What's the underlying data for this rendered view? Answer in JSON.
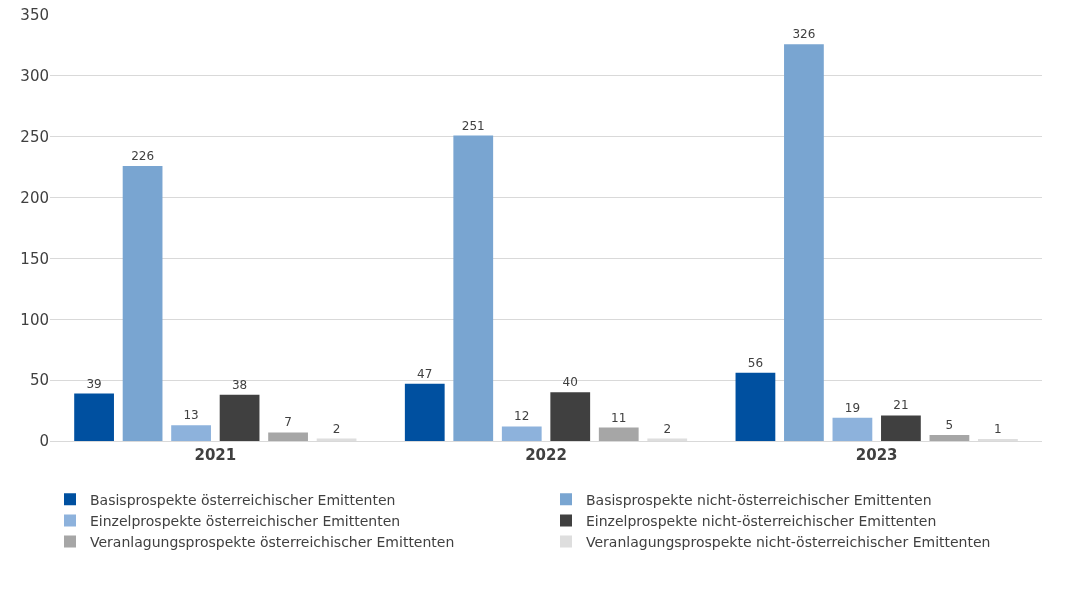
{
  "chart_data": {
    "type": "bar",
    "categories": [
      "2021",
      "2022",
      "2023"
    ],
    "series": [
      {
        "name": "Basisprospekte österreichischer Emittenten",
        "color": "#0050a0",
        "values": [
          39,
          47,
          56
        ]
      },
      {
        "name": "Basisprospekte nicht-österreichischer Emittenten",
        "color": "#79a5d1",
        "values": [
          226,
          251,
          326
        ]
      },
      {
        "name": "Einzelprospekte österreichischer Emittenten",
        "color": "#8db2dc",
        "values": [
          13,
          12,
          19
        ]
      },
      {
        "name": "Einzelprospekte nicht-österreichischer Emittenten",
        "color": "#404040",
        "values": [
          38,
          40,
          21
        ]
      },
      {
        "name": "Veranlagungsprospekte österreichischer Emittenten",
        "color": "#a6a6a6",
        "values": [
          7,
          11,
          5
        ]
      },
      {
        "name": "Veranlagungsprospekte nicht-österreichischer Emittenten",
        "color": "#dedede",
        "values": [
          2,
          2,
          1
        ]
      }
    ],
    "ylim": [
      0,
      350
    ],
    "yticks": [
      0,
      50,
      100,
      150,
      200,
      250,
      300,
      350
    ],
    "grid": "y",
    "legend": "bottom",
    "data_labels": true
  }
}
